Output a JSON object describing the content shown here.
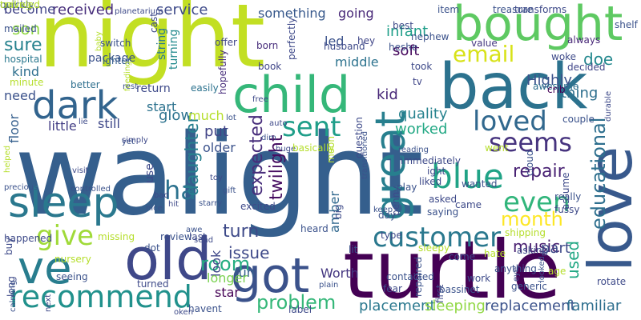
{
  "words": [
    {
      "text": "walight",
      "color": "#355f8d"
    },
    {
      "text": "night",
      "color": "#c2df23"
    },
    {
      "text": "turtle",
      "color": "#440154"
    },
    {
      "text": "back",
      "color": "#2c728e"
    },
    {
      "text": "bought",
      "color": "#5ec962"
    },
    {
      "text": "love",
      "color": "#38598c"
    },
    {
      "text": "old",
      "color": "#3f4889"
    },
    {
      "text": "child",
      "color": "#35b779"
    },
    {
      "text": "great",
      "color": "#277f8e"
    },
    {
      "text": "sleep",
      "color": "#2a788e"
    },
    {
      "text": "got",
      "color": "#3b528b"
    },
    {
      "text": "dark",
      "color": "#32648e"
    },
    {
      "text": "ve",
      "color": "#287d8e"
    },
    {
      "text": "customer",
      "color": "#2a788e"
    },
    {
      "text": "recommend",
      "color": "#21918c"
    },
    {
      "text": "give",
      "color": "#a0da39"
    },
    {
      "text": "blue",
      "color": "#20a386"
    },
    {
      "text": "loved",
      "color": "#31688e"
    },
    {
      "text": "seems",
      "color": "#46337e"
    },
    {
      "text": "sent",
      "color": "#1f9e89"
    },
    {
      "text": "email",
      "color": "#d8e219"
    },
    {
      "text": "even",
      "color": "#31b57b"
    },
    {
      "text": "ha",
      "color": "#2c728e"
    },
    {
      "text": "educational",
      "color": "#2e6f8e"
    },
    {
      "text": "month",
      "color": "#fde725"
    },
    {
      "text": "problem",
      "color": "#35b779"
    },
    {
      "text": "room",
      "color": "#26ad81"
    },
    {
      "text": "turn",
      "color": "#3e4a89"
    },
    {
      "text": "placement",
      "color": "#2a788e"
    },
    {
      "text": "sleeping",
      "color": "#90d743"
    },
    {
      "text": "replacement",
      "color": "#3b528b"
    },
    {
      "text": "familiar",
      "color": "#2e6f8e"
    },
    {
      "text": "daughter",
      "color": "#277f8e"
    },
    {
      "text": "expected",
      "color": "#472d7b"
    },
    {
      "text": "twilight",
      "color": "#470e61"
    },
    {
      "text": "repair",
      "color": "#482173"
    },
    {
      "text": "issue",
      "color": "#3e4989"
    },
    {
      "text": "music",
      "color": "#481f70"
    },
    {
      "text": "used",
      "color": "#22a884"
    },
    {
      "text": "service",
      "color": "#3e4a89"
    },
    {
      "text": "received",
      "color": "#472d7b"
    },
    {
      "text": "son",
      "color": "#90d743"
    },
    {
      "text": "sure",
      "color": "#26828e"
    },
    {
      "text": "kid",
      "color": "#482878"
    },
    {
      "text": "thing",
      "color": "#2e6f8e"
    },
    {
      "text": "doe",
      "color": "#23888e"
    },
    {
      "text": "soft",
      "color": "#46085c"
    },
    {
      "text": "quality",
      "color": "#26828e"
    },
    {
      "text": "worked",
      "color": "#22a884"
    },
    {
      "text": "infant",
      "color": "#1f9e89"
    },
    {
      "text": "Highly",
      "color": "#3b528b"
    },
    {
      "text": "part",
      "color": "#3e4989"
    },
    {
      "text": "glow",
      "color": "#2c728e"
    },
    {
      "text": "put",
      "color": "#414487"
    },
    {
      "text": "look",
      "color": "#3f4889"
    },
    {
      "text": "fun",
      "color": "#355f8d"
    },
    {
      "text": "star",
      "color": "#440154"
    },
    {
      "text": "longer",
      "color": "#7ad151"
    },
    {
      "text": "Worth",
      "color": "#453781"
    },
    {
      "text": "amber",
      "color": "#31688e"
    },
    {
      "text": "something",
      "color": "#38598c"
    },
    {
      "text": "become",
      "color": "#414487"
    },
    {
      "text": "kind",
      "color": "#2e6f8e"
    },
    {
      "text": "need",
      "color": "#3b528b"
    },
    {
      "text": "floor",
      "color": "#355f8d"
    },
    {
      "text": "little",
      "color": "#433e85"
    },
    {
      "text": "start",
      "color": "#2c728e"
    },
    {
      "text": "still",
      "color": "#3f4889"
    },
    {
      "text": "much",
      "color": "#b5de2b"
    },
    {
      "text": "older",
      "color": "#3b528b"
    },
    {
      "text": "middle",
      "color": "#2c728e"
    },
    {
      "text": "going",
      "color": "#482878"
    },
    {
      "text": "led",
      "color": "#3b528b"
    },
    {
      "text": "string",
      "color": "#2a788e"
    },
    {
      "text": "turning",
      "color": "#238a8d"
    },
    {
      "text": "package",
      "color": "#3b528b"
    },
    {
      "text": "use",
      "color": "#3e4989"
    },
    {
      "text": "mailed",
      "color": "#3b528b"
    },
    {
      "text": "hospital",
      "color": "#2a788e"
    },
    {
      "text": "minute",
      "color": "#b5de2b"
    },
    {
      "text": "better",
      "color": "#2e6f8e"
    },
    {
      "text": "return",
      "color": "#3e4a89"
    },
    {
      "text": "easily",
      "color": "#2c728e"
    },
    {
      "text": "ighter",
      "color": "#355f8d"
    },
    {
      "text": "switch",
      "color": "#3b528b"
    },
    {
      "text": "born",
      "color": "#472d7b"
    },
    {
      "text": "book",
      "color": "#404688"
    },
    {
      "text": "husband",
      "color": "#3e4a89"
    },
    {
      "text": "perfectly",
      "color": "#3e4989"
    },
    {
      "text": "hopefully",
      "color": "#472d7b"
    },
    {
      "text": "took",
      "color": "#3e4a89"
    },
    {
      "text": "tv",
      "color": "#404688"
    },
    {
      "text": "awesome",
      "color": "#2e6f8e"
    },
    {
      "text": "crib",
      "color": "#440154"
    },
    {
      "text": "woke",
      "color": "#3e4a89"
    },
    {
      "text": "decided",
      "color": "#404688"
    },
    {
      "text": "always",
      "color": "#482878"
    },
    {
      "text": "shelf",
      "color": "#3b528b"
    },
    {
      "text": "nephew",
      "color": "#3b528b"
    },
    {
      "text": "value",
      "color": "#453781"
    },
    {
      "text": "best",
      "color": "#3e4a89"
    },
    {
      "text": "hey",
      "color": "#404688"
    },
    {
      "text": "heshe",
      "color": "#3b528b"
    },
    {
      "text": "item",
      "color": "#3b528b"
    },
    {
      "text": "treasure",
      "color": "#3b528b"
    },
    {
      "text": "transforms",
      "color": "#3e4a89"
    },
    {
      "text": "offer",
      "color": "#404688"
    },
    {
      "text": "cast",
      "color": "#3e4989"
    },
    {
      "text": "planetarium",
      "color": "#3e4a89"
    },
    {
      "text": "baby",
      "color": "#b5de2b"
    },
    {
      "text": "feeding",
      "color": "#b5de2b"
    },
    {
      "text": "rest",
      "color": "#3b528b"
    },
    {
      "text": "lie",
      "color": "#3e4a89"
    },
    {
      "text": "yet",
      "color": "#3b528b"
    },
    {
      "text": "simply",
      "color": "#3e4989"
    },
    {
      "text": "toy",
      "color": "#3e4a89"
    },
    {
      "text": "gift",
      "color": "#3b528b"
    },
    {
      "text": "visit",
      "color": "#3e4a89"
    },
    {
      "text": "controlled",
      "color": "#3b528b"
    },
    {
      "text": "bad",
      "color": "#3e4989"
    },
    {
      "text": "nice",
      "color": "#3b528b"
    },
    {
      "text": "hit",
      "color": "#3e4a89"
    },
    {
      "text": "starry",
      "color": "#3b528b"
    },
    {
      "text": "free",
      "color": "#3e4a89"
    },
    {
      "text": "lot",
      "color": "#3b528b"
    },
    {
      "text": "auto",
      "color": "#3e4989"
    },
    {
      "text": "dim",
      "color": "#3b528b"
    },
    {
      "text": "huge",
      "color": "#3e4a89"
    },
    {
      "text": "basically",
      "color": "#b5de2b"
    },
    {
      "text": "excited",
      "color": "#3e4a89"
    },
    {
      "text": "missing",
      "color": "#b5de2b"
    },
    {
      "text": "review",
      "color": "#3b528b"
    },
    {
      "text": "last",
      "color": "#3e4a89"
    },
    {
      "text": "awe",
      "color": "#3b528b"
    },
    {
      "text": "send",
      "color": "#3e4a89"
    },
    {
      "text": "dot",
      "color": "#3b528b"
    },
    {
      "text": "nursery",
      "color": "#b5de2b"
    },
    {
      "text": "happened",
      "color": "#3e4a89"
    },
    {
      "text": "long",
      "color": "#3e4a89"
    },
    {
      "text": "calming",
      "color": "#3b528b"
    },
    {
      "text": "next",
      "color": "#3e4989"
    },
    {
      "text": "seeing",
      "color": "#3b528b"
    },
    {
      "text": "turned",
      "color": "#3e4a89"
    },
    {
      "text": "havent",
      "color": "#3b528b"
    },
    {
      "text": "oken",
      "color": "#3e4a89"
    },
    {
      "text": "plain",
      "color": "#3b528b"
    },
    {
      "text": "label",
      "color": "#3e4a89"
    },
    {
      "text": "contacted",
      "color": "#3b528b"
    },
    {
      "text": "fear",
      "color": "#3e4a89"
    },
    {
      "text": "heard",
      "color": "#3b528b"
    },
    {
      "text": "type",
      "color": "#3e4a89"
    },
    {
      "text": "lit",
      "color": "#3b528b"
    },
    {
      "text": "sleepy",
      "color": "#b5de2b"
    },
    {
      "text": "come",
      "color": "#3e4a89"
    },
    {
      "text": "repaired",
      "color": "#3b528b"
    },
    {
      "text": "first",
      "color": "#3e4a89"
    },
    {
      "text": "bassinet",
      "color": "#3b528b"
    },
    {
      "text": "work",
      "color": "#3e4a89"
    },
    {
      "text": "anything",
      "color": "#3b528b"
    },
    {
      "text": "asking",
      "color": "#3e4a89"
    },
    {
      "text": "generic",
      "color": "#3b528b"
    },
    {
      "text": "rotate",
      "color": "#3e4a89"
    },
    {
      "text": "shipping",
      "color": "#b5de2b"
    },
    {
      "text": "eye",
      "color": "#3e4a89"
    },
    {
      "text": "looked",
      "color": "#3b528b"
    },
    {
      "text": "age",
      "color": "#b5de2b"
    },
    {
      "text": "hate",
      "color": "#b5de2b"
    },
    {
      "text": "asked",
      "color": "#3e4a89"
    },
    {
      "text": "saying",
      "color": "#3b528b"
    },
    {
      "text": "came",
      "color": "#3e4a89"
    },
    {
      "text": "day",
      "color": "#3b528b"
    },
    {
      "text": "penny",
      "color": "#3e4a89"
    },
    {
      "text": "play",
      "color": "#3b528b"
    },
    {
      "text": "liked",
      "color": "#3e4a89"
    },
    {
      "text": "wanted",
      "color": "#3b528b"
    },
    {
      "text": "ight",
      "color": "#3e4a89"
    },
    {
      "text": "keep",
      "color": "#3b528b"
    },
    {
      "text": "big",
      "color": "#3e4a89"
    },
    {
      "text": "moon",
      "color": "#b5de2b"
    },
    {
      "text": "transitioned",
      "color": "#3b528b"
    },
    {
      "text": "question",
      "color": "#3e4a89"
    },
    {
      "text": "reading",
      "color": "#3b528b"
    },
    {
      "text": "immediately",
      "color": "#3e4a89"
    },
    {
      "text": "went",
      "color": "#b5de2b"
    },
    {
      "text": "cloud",
      "color": "#3b528b"
    },
    {
      "text": "assume",
      "color": "#3e4a89"
    },
    {
      "text": "really",
      "color": "#3b528b"
    },
    {
      "text": "fussy",
      "color": "#3e4a89"
    },
    {
      "text": "couple",
      "color": "#3b528b"
    },
    {
      "text": "durable",
      "color": "#3e4a89"
    },
    {
      "text": "precious",
      "color": "#3b528b"
    },
    {
      "text": "buy",
      "color": "#3e4a89"
    },
    {
      "text": "helped",
      "color": "#b5de2b"
    },
    {
      "text": "ceiling",
      "color": "#b5de2b"
    },
    {
      "text": "quickly",
      "color": "#3b528b"
    },
    {
      "text": "traveled",
      "color": "#b5de2b"
    }
  ]
}
